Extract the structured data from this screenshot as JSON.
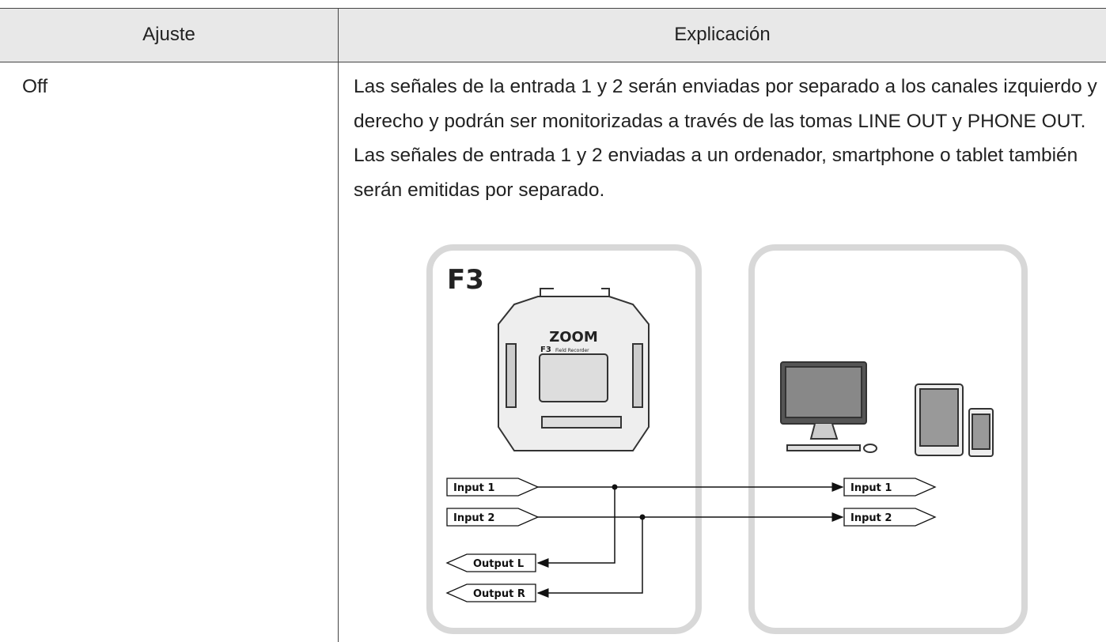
{
  "table": {
    "header": [
      "Ajuste",
      "Explicación"
    ],
    "rows": [
      {
        "setting": "Off",
        "explanation": [
          "Las señales de la entrada 1 y 2 serán enviadas por separado a los canales izquierdo y derecho y podrán ser monitorizadas a través de las tomas LINE OUT y PHONE OUT.",
          "Las señales de entrada 1 y 2 enviadas a un ordenador, smartphone o tablet también serán emitidas por separado."
        ]
      }
    ]
  },
  "diagram": {
    "device": "F3",
    "device_model": "F3",
    "device_subtitle": "Field Recorder",
    "left_inputs": [
      "Input 1",
      "Input 2"
    ],
    "outputs": [
      "Output L",
      "Output R"
    ],
    "right_inputs": [
      "Input 1",
      "Input 2"
    ]
  }
}
